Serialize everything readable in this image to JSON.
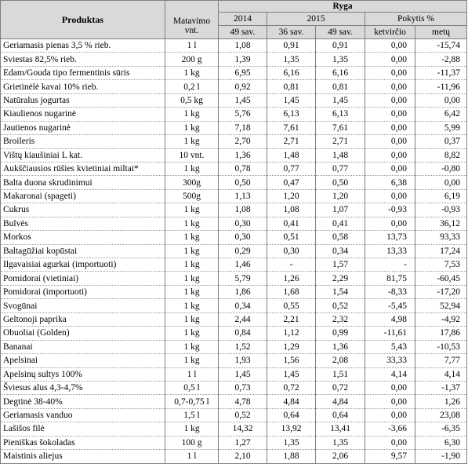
{
  "header": {
    "product": "Produktas",
    "unit_line1": "Matavimo",
    "unit_line2": "vnt.",
    "city": "Ryga",
    "year_2014": "2014",
    "year_2015": "2015",
    "change": "Pokytis %",
    "w49_2014": "49 sav.",
    "w36_2015": "36 sav.",
    "w49_2015": "49 sav.",
    "quarter": "ketvirčio",
    "year": "metų"
  },
  "rows": [
    {
      "name": "Geriamasis pienas 3,5 % rieb.",
      "unit": "1 l",
      "p2014": "1,08",
      "p36": "0,91",
      "p49": "0,91",
      "qtr": "0,00",
      "yr": "-15,74"
    },
    {
      "name": "Sviestas 82,5% rieb.",
      "unit": "200 g",
      "p2014": "1,39",
      "p36": "1,35",
      "p49": "1,35",
      "qtr": "0,00",
      "yr": "-2,88"
    },
    {
      "name": "Edam/Gouda tipo fermentinis sūris",
      "unit": "1 kg",
      "p2014": "6,95",
      "p36": "6,16",
      "p49": "6,16",
      "qtr": "0,00",
      "yr": "-11,37"
    },
    {
      "name": "Grietinėlė kavai 10% rieb.",
      "unit": "0,2 l",
      "p2014": "0,92",
      "p36": "0,81",
      "p49": "0,81",
      "qtr": "0,00",
      "yr": "-11,96"
    },
    {
      "name": "Natūralus jogurtas",
      "unit": "0,5 kg",
      "p2014": "1,45",
      "p36": "1,45",
      "p49": "1,45",
      "qtr": "0,00",
      "yr": "0,00"
    },
    {
      "name": "Kiaulienos nugarinė",
      "unit": "1 kg",
      "p2014": "5,76",
      "p36": "6,13",
      "p49": "6,13",
      "qtr": "0,00",
      "yr": "6,42"
    },
    {
      "name": "Jautienos nugarinė",
      "unit": "1 kg",
      "p2014": "7,18",
      "p36": "7,61",
      "p49": "7,61",
      "qtr": "0,00",
      "yr": "5,99"
    },
    {
      "name": "Broileris",
      "unit": "1 kg",
      "p2014": "2,70",
      "p36": "2,71",
      "p49": "2,71",
      "qtr": "0,00",
      "yr": "0,37"
    },
    {
      "name": "Vištų kiaušiniai L kat.",
      "unit": "10 vnt.",
      "p2014": "1,36",
      "p36": "1,48",
      "p49": "1,48",
      "qtr": "0,00",
      "yr": "8,82"
    },
    {
      "name": "Aukščiausios rūšies kvietiniai miltai*",
      "unit": "1 kg",
      "p2014": "0,78",
      "p36": "0,77",
      "p49": "0,77",
      "qtr": "0,00",
      "yr": "-0,80"
    },
    {
      "name": "Balta duona skrudinimui",
      "unit": "300g",
      "p2014": "0,50",
      "p36": "0,47",
      "p49": "0,50",
      "qtr": "6,38",
      "yr": "0,00"
    },
    {
      "name": "Makaronai (spageti)",
      "unit": "500g",
      "p2014": "1,13",
      "p36": "1,20",
      "p49": "1,20",
      "qtr": "0,00",
      "yr": "6,19"
    },
    {
      "name": "Cukrus",
      "unit": "1 kg",
      "p2014": "1,08",
      "p36": "1,08",
      "p49": "1,07",
      "qtr": "-0,93",
      "yr": "-0,93"
    },
    {
      "name": "Bulvės",
      "unit": "1 kg",
      "p2014": "0,30",
      "p36": "0,41",
      "p49": "0,41",
      "qtr": "0,00",
      "yr": "36,12"
    },
    {
      "name": "Morkos",
      "unit": "1 kg",
      "p2014": "0,30",
      "p36": "0,51",
      "p49": "0,58",
      "qtr": "13,73",
      "yr": "93,33"
    },
    {
      "name": "Baltagūžiai kopūstai",
      "unit": "1 kg",
      "p2014": "0,29",
      "p36": "0,30",
      "p49": "0,34",
      "qtr": "13,33",
      "yr": "17,24"
    },
    {
      "name": "Ilgavaisiai agurkai (importuoti)",
      "unit": "1 kg",
      "p2014": "1,46",
      "p36": "-",
      "p49": "1,57",
      "qtr": "-",
      "yr": "7,53"
    },
    {
      "name": "Pomidorai (vietiniai)",
      "unit": "1 kg",
      "p2014": "5,79",
      "p36": "1,26",
      "p49": "2,29",
      "qtr": "81,75",
      "yr": "-60,45"
    },
    {
      "name": "Pomidorai (importuoti)",
      "unit": "1 kg",
      "p2014": "1,86",
      "p36": "1,68",
      "p49": "1,54",
      "qtr": "-8,33",
      "yr": "-17,20"
    },
    {
      "name": "Svogūnai",
      "unit": "1 kg",
      "p2014": "0,34",
      "p36": "0,55",
      "p49": "0,52",
      "qtr": "-5,45",
      "yr": "52,94"
    },
    {
      "name": "Geltonoji paprika",
      "unit": "1 kg",
      "p2014": "2,44",
      "p36": "2,21",
      "p49": "2,32",
      "qtr": "4,98",
      "yr": "-4,92"
    },
    {
      "name": "Obuoliai (Golden)",
      "unit": "1 kg",
      "p2014": "0,84",
      "p36": "1,12",
      "p49": "0,99",
      "qtr": "-11,61",
      "yr": "17,86"
    },
    {
      "name": "Bananai",
      "unit": "1 kg",
      "p2014": "1,52",
      "p36": "1,29",
      "p49": "1,36",
      "qtr": "5,43",
      "yr": "-10,53"
    },
    {
      "name": "Apelsinai",
      "unit": "1 kg",
      "p2014": "1,93",
      "p36": "1,56",
      "p49": "2,08",
      "qtr": "33,33",
      "yr": "7,77"
    },
    {
      "name": "Apelsinų sultys 100%",
      "unit": "1 l",
      "p2014": "1,45",
      "p36": "1,45",
      "p49": "1,51",
      "qtr": "4,14",
      "yr": "4,14"
    },
    {
      "name": "Šviesus alus 4,3-4,7%",
      "unit": "0,5 l",
      "p2014": "0,73",
      "p36": "0,72",
      "p49": "0,72",
      "qtr": "0,00",
      "yr": "-1,37"
    },
    {
      "name": "Degtinė 38-40%",
      "unit": "0,7-0,75 l",
      "p2014": "4,78",
      "p36": "4,84",
      "p49": "4,84",
      "qtr": "0,00",
      "yr": "1,26"
    },
    {
      "name": "Geriamasis vanduo",
      "unit": "1,5 l",
      "p2014": "0,52",
      "p36": "0,64",
      "p49": "0,64",
      "qtr": "0,00",
      "yr": "23,08"
    },
    {
      "name": "Lašišos filė",
      "unit": "1 kg",
      "p2014": "14,32",
      "p36": "13,92",
      "p49": "13,41",
      "qtr": "-3,66",
      "yr": "-6,35"
    },
    {
      "name": "Pieniškas šokoladas",
      "unit": "100 g",
      "p2014": "1,27",
      "p36": "1,35",
      "p49": "1,35",
      "qtr": "0,00",
      "yr": "6,30"
    },
    {
      "name": "Maistinis aliejus",
      "unit": "1 l",
      "p2014": "2,10",
      "p36": "1,88",
      "p49": "2,06",
      "qtr": "9,57",
      "yr": "-1,90"
    }
  ]
}
